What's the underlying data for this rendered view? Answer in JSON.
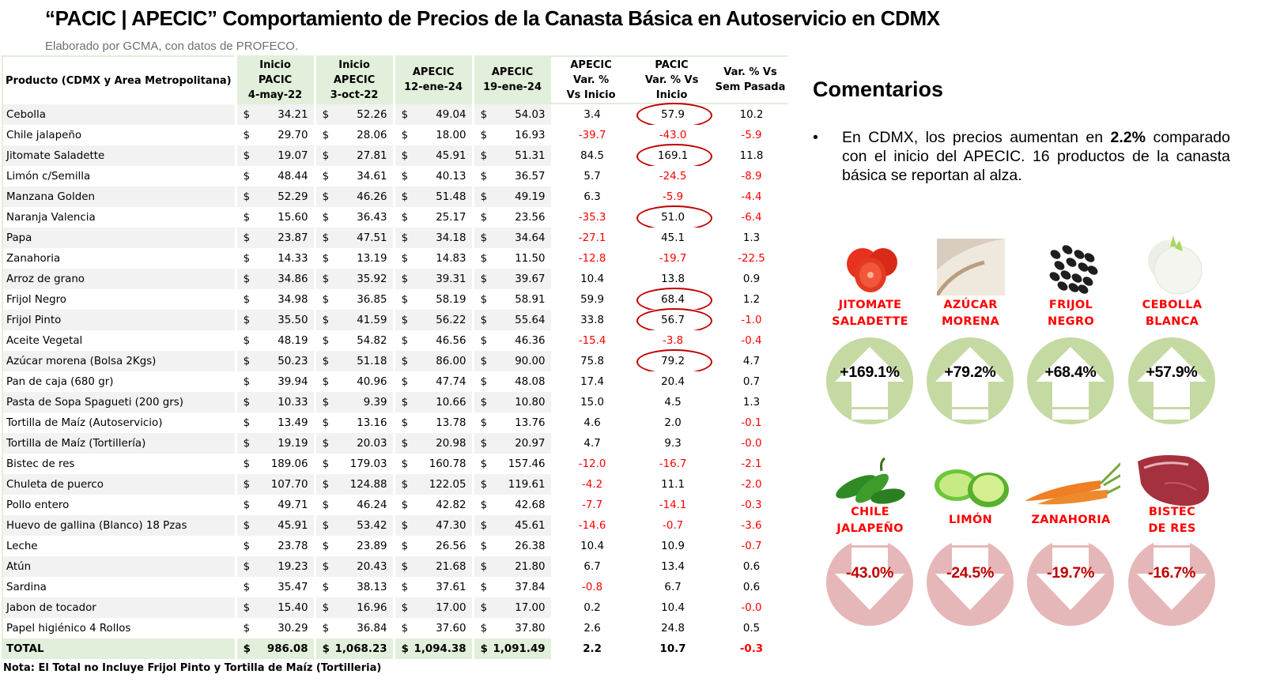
{
  "header": {
    "title": "“PACIC | APECIC” Comportamiento de Precios de la Canasta Básica en Autoservicio en CDMX",
    "subtitle": "Elaborado por GCMA, con datos de PROFECO."
  },
  "table": {
    "currency_symbol": "$",
    "columns": {
      "product": "Producto (CDMX y Area Metropolitana)",
      "inicio_pacic": [
        "Inicio",
        "PACIC",
        "4-may-22"
      ],
      "inicio_apecic": [
        "Inicio",
        "APECIC",
        "3-oct-22"
      ],
      "apecic_12ene": [
        "APECIC",
        "12-ene-24"
      ],
      "apecic_19ene": [
        "APECIC",
        "19-ene-24"
      ],
      "apecic_var": [
        "APECIC",
        "Var. %",
        "Vs  Inicio"
      ],
      "pacic_var": [
        "PACIC",
        "Var. % Vs",
        "Inicio"
      ],
      "var_sem": [
        "Var. % Vs",
        "Sem Pasada"
      ]
    },
    "rows": [
      {
        "product": "Cebolla",
        "p1": "34.21",
        "p2": "52.26",
        "p3": "49.04",
        "p4": "54.03",
        "apecic_var": "3.4",
        "pacic_var": "57.9",
        "var_sem": "10.2",
        "circled": true
      },
      {
        "product": "Chile jalapeño",
        "p1": "29.70",
        "p2": "28.06",
        "p3": "18.00",
        "p4": "16.93",
        "apecic_var": "-39.7",
        "pacic_var": "-43.0",
        "var_sem": "-5.9",
        "circled": false
      },
      {
        "product": "Jitomate Saladette",
        "p1": "19.07",
        "p2": "27.81",
        "p3": "45.91",
        "p4": "51.31",
        "apecic_var": "84.5",
        "pacic_var": "169.1",
        "var_sem": "11.8",
        "circled": true
      },
      {
        "product": "Limón c/Semilla",
        "p1": "48.44",
        "p2": "34.61",
        "p3": "40.13",
        "p4": "36.57",
        "apecic_var": "5.7",
        "pacic_var": "-24.5",
        "var_sem": "-8.9",
        "circled": false
      },
      {
        "product": "Manzana Golden",
        "p1": "52.29",
        "p2": "46.26",
        "p3": "51.48",
        "p4": "49.19",
        "apecic_var": "6.3",
        "pacic_var": "-5.9",
        "var_sem": "-4.4",
        "circled": false
      },
      {
        "product": "Naranja Valencia",
        "p1": "15.60",
        "p2": "36.43",
        "p3": "25.17",
        "p4": "23.56",
        "apecic_var": "-35.3",
        "pacic_var": "51.0",
        "var_sem": "-6.4",
        "circled": true
      },
      {
        "product": "Papa",
        "p1": "23.87",
        "p2": "47.51",
        "p3": "34.18",
        "p4": "34.64",
        "apecic_var": "-27.1",
        "pacic_var": "45.1",
        "var_sem": "1.3",
        "circled": false
      },
      {
        "product": "Zanahoria",
        "p1": "14.33",
        "p2": "13.19",
        "p3": "14.83",
        "p4": "11.50",
        "apecic_var": "-12.8",
        "pacic_var": "-19.7",
        "var_sem": "-22.5",
        "circled": false
      },
      {
        "product": "Arroz de grano",
        "p1": "34.86",
        "p2": "35.92",
        "p3": "39.31",
        "p4": "39.67",
        "apecic_var": "10.4",
        "pacic_var": "13.8",
        "var_sem": "0.9",
        "circled": false
      },
      {
        "product": "Frijol Negro",
        "p1": "34.98",
        "p2": "36.85",
        "p3": "58.19",
        "p4": "58.91",
        "apecic_var": "59.9",
        "pacic_var": "68.4",
        "var_sem": "1.2",
        "circled": true
      },
      {
        "product": "Frijol Pinto",
        "p1": "35.50",
        "p2": "41.59",
        "p3": "56.22",
        "p4": "55.64",
        "apecic_var": "33.8",
        "pacic_var": "56.7",
        "var_sem": "-1.0",
        "circled": true
      },
      {
        "product": "Aceite Vegetal",
        "p1": "48.19",
        "p2": "54.82",
        "p3": "46.56",
        "p4": "46.36",
        "apecic_var": "-15.4",
        "pacic_var": "-3.8",
        "var_sem": "-0.4",
        "circled": false
      },
      {
        "product": "Azúcar morena (Bolsa 2Kgs)",
        "p1": "50.23",
        "p2": "51.18",
        "p3": "86.00",
        "p4": "90.00",
        "apecic_var": "75.8",
        "pacic_var": "79.2",
        "var_sem": "4.7",
        "circled": true
      },
      {
        "product": "Pan de caja (680 gr)",
        "p1": "39.94",
        "p2": "40.96",
        "p3": "47.74",
        "p4": "48.08",
        "apecic_var": "17.4",
        "pacic_var": "20.4",
        "var_sem": "0.7",
        "circled": false
      },
      {
        "product": "Pasta de Sopa Spagueti (200 grs)",
        "p1": "10.33",
        "p2": "9.39",
        "p3": "10.66",
        "p4": "10.80",
        "apecic_var": "15.0",
        "pacic_var": "4.5",
        "var_sem": "1.3",
        "circled": false
      },
      {
        "product": "Tortilla de Maíz (Autoservicio)",
        "p1": "13.49",
        "p2": "13.16",
        "p3": "13.78",
        "p4": "13.76",
        "apecic_var": "4.6",
        "pacic_var": "2.0",
        "var_sem": "-0.1",
        "circled": false
      },
      {
        "product": "Tortilla de Maíz (Tortillería)",
        "p1": "19.19",
        "p2": "20.03",
        "p3": "20.98",
        "p4": "20.97",
        "apecic_var": "4.7",
        "pacic_var": "9.3",
        "var_sem": "-0.0",
        "circled": false
      },
      {
        "product": "Bistec de res",
        "p1": "189.06",
        "p2": "179.03",
        "p3": "160.78",
        "p4": "157.46",
        "apecic_var": "-12.0",
        "pacic_var": "-16.7",
        "var_sem": "-2.1",
        "circled": false
      },
      {
        "product": "Chuleta de puerco",
        "p1": "107.70",
        "p2": "124.88",
        "p3": "122.05",
        "p4": "119.61",
        "apecic_var": "-4.2",
        "pacic_var": "11.1",
        "var_sem": "-2.0",
        "circled": false
      },
      {
        "product": "Pollo entero",
        "p1": "49.71",
        "p2": "46.24",
        "p3": "42.82",
        "p4": "42.68",
        "apecic_var": "-7.7",
        "pacic_var": "-14.1",
        "var_sem": "-0.3",
        "circled": false
      },
      {
        "product": "Huevo de gallina (Blanco) 18 Pzas",
        "p1": "45.91",
        "p2": "53.42",
        "p3": "47.30",
        "p4": "45.61",
        "apecic_var": "-14.6",
        "pacic_var": "-0.7",
        "var_sem": "-3.6",
        "circled": false
      },
      {
        "product": "Leche",
        "p1": "23.78",
        "p2": "23.89",
        "p3": "26.56",
        "p4": "26.38",
        "apecic_var": "10.4",
        "pacic_var": "10.9",
        "var_sem": "-0.7",
        "circled": false
      },
      {
        "product": "Atún",
        "p1": "19.23",
        "p2": "20.43",
        "p3": "21.68",
        "p4": "21.80",
        "apecic_var": "6.7",
        "pacic_var": "13.4",
        "var_sem": "0.6",
        "circled": false
      },
      {
        "product": "Sardina",
        "p1": "35.47",
        "p2": "38.13",
        "p3": "37.61",
        "p4": "37.84",
        "apecic_var": "-0.8",
        "pacic_var": "6.7",
        "var_sem": "0.6",
        "circled": false
      },
      {
        "product": "Jabon de tocador",
        "p1": "15.40",
        "p2": "16.96",
        "p3": "17.00",
        "p4": "17.00",
        "apecic_var": "0.2",
        "pacic_var": "10.4",
        "var_sem": "-0.0",
        "circled": false
      },
      {
        "product": "Papel higiénico 4 Rollos",
        "p1": "30.29",
        "p2": "36.84",
        "p3": "37.60",
        "p4": "37.80",
        "apecic_var": "2.6",
        "pacic_var": "24.8",
        "var_sem": "0.5",
        "circled": false
      }
    ],
    "total": {
      "product": "TOTAL",
      "p1": "986.08",
      "p2": "1,068.23",
      "p3": "1,094.38",
      "p4": "1,091.49",
      "apecic_var": "2.2",
      "pacic_var": "10.7",
      "var_sem": "-0.3"
    },
    "note": "Nota: El Total no Incluye Frijol Pinto y Tortilla de Maíz (Tortilleria)"
  },
  "comments": {
    "title": "Comentarios",
    "bullet_char": "•",
    "bullet_before": "En CDMX, los precios aumentan en ",
    "bullet_bold": "2.2%",
    "bullet_after": " comparado con el inicio del APECIC. 16 productos de la canasta básica se reportan al alza."
  },
  "highlights": {
    "up_color": "#c5d9a3",
    "down_color": "#e6b7b8",
    "label_color": "#ff0000",
    "increases": [
      {
        "label1": "JITOMATE",
        "label2": "SALADETTE",
        "value": "+169.1%",
        "image": "tomato-image"
      },
      {
        "label1": "AZÚCAR",
        "label2": "MORENA",
        "value": "+79.2%",
        "image": "sugar-image"
      },
      {
        "label1": "FRIJOL",
        "label2": "NEGRO",
        "value": "+68.4%",
        "image": "black-beans-image"
      },
      {
        "label1": "CEBOLLA",
        "label2": "BLANCA",
        "value": "+57.9%",
        "image": "onion-image"
      }
    ],
    "decreases": [
      {
        "label1": "CHILE",
        "label2": "JALAPEÑO",
        "value": "-43.0%",
        "image": "jalapeno-image"
      },
      {
        "label1": "LIMÓN",
        "label2": "",
        "value": "-24.5%",
        "image": "lime-image"
      },
      {
        "label1": "ZANAHORIA",
        "label2": "",
        "value": "-19.7%",
        "image": "carrot-image"
      },
      {
        "label1": "BISTEC",
        "label2": "DE RES",
        "value": "-16.7%",
        "image": "beef-steak-image"
      }
    ]
  }
}
